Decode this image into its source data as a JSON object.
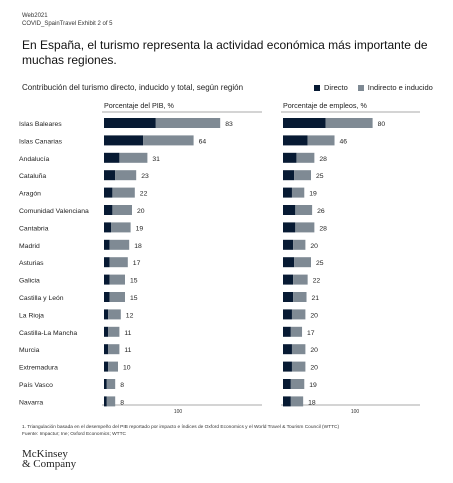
{
  "header": {
    "line1": "Web2021",
    "line2": "COVID_SpainTravel Exhibit 2 of 5"
  },
  "title": "En España, el turismo representa la actividad económica más importante de muchas regiones.",
  "subtitle": "Contribución del turismo directo, inducido y total, según región",
  "legend": [
    {
      "label": "Directo",
      "color": "#071a33"
    },
    {
      "label": "Indirecto e inducido",
      "color": "#7f8a94"
    }
  ],
  "footnote": "1. Triangulación basada en el desempeño del PIB reportado por impacto e índices de Oxford Economics y el World Travel & Tourism Council (WTTC)",
  "source": "Fuente: Impactur; Ine; Oxford Economics; WTTC",
  "logo": {
    "line1": "McKinsey",
    "line2": "& Company"
  },
  "chart_data": [
    {
      "type": "bar",
      "stacked": true,
      "orientation": "horizontal",
      "title": "Porcentaje del PIB, %",
      "axis_label": "100",
      "xlim": [
        0,
        100
      ],
      "categories": [
        "Islas Baleares",
        "Islas Canarias",
        "Andalucía",
        "Cataluña",
        "Aragón",
        "Comunidad Valenciana",
        "Cantabria",
        "Madrid",
        "Asturias",
        "Galicia",
        "Castilla y León",
        "La Rioja",
        "Castilla-La Mancha",
        "Murcia",
        "Extremadura",
        "País Vasco",
        "Navarra"
      ],
      "series": [
        {
          "name": "Directo",
          "values": [
            37,
            28,
            11,
            8,
            6,
            6,
            5,
            4,
            4,
            4,
            4,
            3,
            3,
            3,
            3,
            2,
            2
          ]
        },
        {
          "name": "Indirecto e inducido",
          "values": [
            46,
            36,
            20,
            15,
            16,
            14,
            14,
            14,
            13,
            11,
            11,
            9,
            8,
            8,
            7,
            6,
            6
          ]
        }
      ],
      "totals": [
        83,
        64,
        31,
        23,
        22,
        20,
        19,
        18,
        17,
        15,
        15,
        12,
        11,
        11,
        10,
        8,
        8
      ]
    },
    {
      "type": "bar",
      "stacked": true,
      "orientation": "horizontal",
      "title": "Porcentaje de empleos, %",
      "axis_label": "100",
      "xlim": [
        0,
        100
      ],
      "categories": [
        "Islas Baleares",
        "Islas Canarias",
        "Andalucía",
        "Cataluña",
        "Aragón",
        "Comunidad Valenciana",
        "Cantabria",
        "Madrid",
        "Asturias",
        "Galicia",
        "Castilla y León",
        "La Rioja",
        "Castilla-La Mancha",
        "Murcia",
        "Extremadura",
        "País Vasco",
        "Navarra"
      ],
      "series": [
        {
          "name": "Directo",
          "values": [
            38,
            22,
            12,
            10,
            8,
            11,
            11,
            9,
            10,
            9,
            9,
            8,
            7,
            8,
            8,
            7,
            7
          ]
        },
        {
          "name": "Indirecto e inducido",
          "values": [
            42,
            24,
            16,
            15,
            11,
            15,
            17,
            11,
            15,
            13,
            12,
            12,
            10,
            12,
            12,
            12,
            11
          ]
        }
      ],
      "totals": [
        80,
        46,
        28,
        25,
        19,
        26,
        28,
        20,
        25,
        22,
        21,
        20,
        17,
        20,
        20,
        19,
        18
      ]
    }
  ]
}
